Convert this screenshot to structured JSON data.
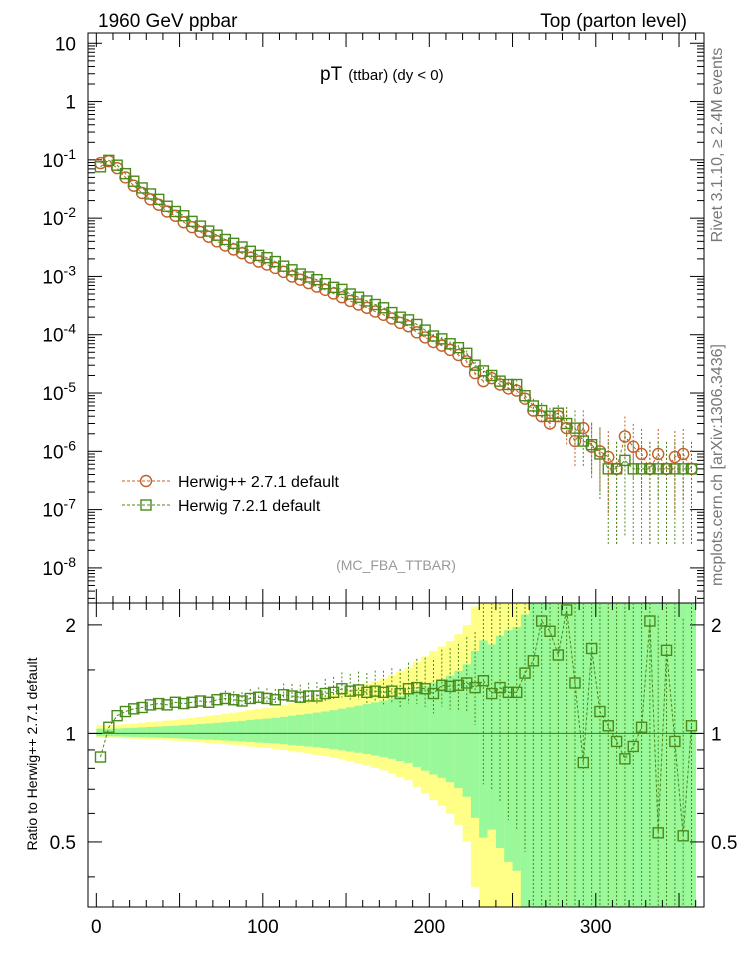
{
  "header": {
    "left": "1960 GeV ppbar",
    "right": "Top (parton level)"
  },
  "side_text": {
    "rivet": "Rivet 3.1.10, ≥ 2.4M events",
    "mcplots": "mcplots.cern.ch [arXiv:1306.3436]"
  },
  "plot_title": {
    "main": "pT",
    "sub": "(ttbar) (dy < 0)"
  },
  "analysis_label": "(MC_FBA_TTBAR)",
  "legend": [
    {
      "label": "Herwig++ 2.7.1 default",
      "color": "#c0602a",
      "marker": "circle"
    },
    {
      "label": "Herwig 7.2.1 default",
      "color": "#4a8a1a",
      "marker": "square"
    }
  ],
  "colors": {
    "herwigpp": "#c0602a",
    "herwig7": "#4a8a1a",
    "band_inner": "#99f899",
    "band_outer": "#ffff88"
  },
  "chart_data": [
    {
      "type": "line",
      "scale": "log",
      "xlim": [
        -5,
        365
      ],
      "ylim": [
        2.5e-09,
        15
      ],
      "ytick_labels": [
        "10",
        "1",
        "10^-1",
        "10^-2",
        "10^-3",
        "10^-4",
        "10^-5",
        "10^-6",
        "10^-7",
        "10^-8"
      ],
      "series": [
        {
          "name": "Herwig++ 2.7.1 default",
          "x": [
            2.5,
            7.5,
            12.5,
            17.5,
            22.5,
            27.5,
            32.5,
            37.5,
            42.5,
            47.5,
            52.5,
            57.5,
            62.5,
            67.5,
            72.5,
            77.5,
            82.5,
            87.5,
            92.5,
            97.5,
            102.5,
            107.5,
            112.5,
            117.5,
            122.5,
            127.5,
            132.5,
            137.5,
            142.5,
            147.5,
            152.5,
            157.5,
            162.5,
            167.5,
            172.5,
            177.5,
            182.5,
            187.5,
            192.5,
            197.5,
            202.5,
            207.5,
            212.5,
            217.5,
            222.5,
            227.5,
            232.5,
            237.5,
            242.5,
            247.5,
            252.5,
            257.5,
            262.5,
            267.5,
            272.5,
            277.5,
            282.5,
            287.5,
            292.5,
            297.5,
            302.5,
            307.5,
            312.5,
            317.5,
            322.5,
            327.5,
            332.5,
            337.5,
            342.5,
            347.5,
            352.5,
            357.5
          ],
          "y": [
            0.088,
            0.095,
            0.072,
            0.05,
            0.036,
            0.027,
            0.021,
            0.017,
            0.013,
            0.011,
            0.0085,
            0.007,
            0.0058,
            0.0048,
            0.004,
            0.0034,
            0.0029,
            0.0025,
            0.0021,
            0.0018,
            0.0016,
            0.0014,
            0.0012,
            0.001,
            0.00088,
            0.00077,
            0.00067,
            0.00059,
            0.00051,
            0.00044,
            0.00038,
            0.00033,
            0.00029,
            0.00025,
            0.00022,
            0.00019,
            0.00016,
            0.00014,
            0.00011,
            9e-05,
            7.5e-05,
            6.5e-05,
            5.5e-05,
            4.5e-05,
            3.5e-05,
            2.2e-05,
            1.6e-05,
            1.8e-05,
            1.4e-05,
            1.2e-05,
            1.1e-05,
            8e-06,
            5e-06,
            4e-06,
            3e-06,
            4e-06,
            2.5e-06,
            1.5e-06,
            2.5e-06,
            1.2e-06,
            1e-06,
            8e-07,
            5e-07,
            1.8e-06,
            1.2e-06,
            9e-07,
            5e-07,
            9e-07,
            5e-07,
            8e-07,
            9e-07,
            5e-07
          ]
        },
        {
          "name": "Herwig 7.2.1 default",
          "x": [
            2.5,
            7.5,
            12.5,
            17.5,
            22.5,
            27.5,
            32.5,
            37.5,
            42.5,
            47.5,
            52.5,
            57.5,
            62.5,
            67.5,
            72.5,
            77.5,
            82.5,
            87.5,
            92.5,
            97.5,
            102.5,
            107.5,
            112.5,
            117.5,
            122.5,
            127.5,
            132.5,
            137.5,
            142.5,
            147.5,
            152.5,
            157.5,
            162.5,
            167.5,
            172.5,
            177.5,
            182.5,
            187.5,
            192.5,
            197.5,
            202.5,
            207.5,
            212.5,
            217.5,
            222.5,
            227.5,
            232.5,
            237.5,
            242.5,
            247.5,
            252.5,
            257.5,
            262.5,
            267.5,
            272.5,
            277.5,
            282.5,
            287.5,
            292.5,
            297.5,
            302.5,
            307.5,
            312.5,
            317.5,
            322.5,
            327.5,
            332.5,
            337.5,
            342.5,
            347.5,
            352.5,
            357.5
          ],
          "y": [
            0.076,
            0.098,
            0.081,
            0.058,
            0.043,
            0.033,
            0.026,
            0.021,
            0.016,
            0.013,
            0.011,
            0.0088,
            0.0073,
            0.006,
            0.0051,
            0.0043,
            0.0037,
            0.0032,
            0.0027,
            0.0023,
            0.0021,
            0.0018,
            0.0015,
            0.0013,
            0.0011,
            0.00098,
            0.00088,
            0.00075,
            0.00065,
            0.0006,
            0.0005,
            0.00044,
            0.00038,
            0.00033,
            0.00029,
            0.00024,
            0.0002,
            0.00018,
            0.00015,
            0.00012,
            9.5e-05,
            8.5e-05,
            7e-05,
            6e-05,
            4.8e-05,
            3e-05,
            2.4e-05,
            2e-05,
            1.6e-05,
            1.4e-05,
            1.4e-05,
            9e-06,
            6e-06,
            5e-06,
            4e-06,
            4.5e-06,
            3e-06,
            2.5e-06,
            1.5e-06,
            1.3e-06,
            9e-07,
            5e-07,
            5e-07,
            7e-07,
            5e-07,
            5e-07,
            5e-07,
            5e-07,
            5e-07,
            5e-07,
            5e-07,
            5e-07
          ]
        }
      ]
    },
    {
      "type": "line",
      "ylabel": "Ratio to Herwig++ 2.7.1 default",
      "xlim": [
        -5,
        365
      ],
      "ylim": [
        0.33,
        2.3
      ],
      "yticks": [
        0.5,
        1,
        2
      ],
      "xticks": [
        0,
        100,
        200,
        300
      ],
      "series": [
        {
          "name": "Herwig 7.2.1 default",
          "x": [
            2.5,
            7.5,
            12.5,
            17.5,
            22.5,
            27.5,
            32.5,
            37.5,
            42.5,
            47.5,
            52.5,
            57.5,
            62.5,
            67.5,
            72.5,
            77.5,
            82.5,
            87.5,
            92.5,
            97.5,
            102.5,
            107.5,
            112.5,
            117.5,
            122.5,
            127.5,
            132.5,
            137.5,
            142.5,
            147.5,
            152.5,
            157.5,
            162.5,
            167.5,
            172.5,
            177.5,
            182.5,
            187.5,
            192.5,
            197.5,
            202.5,
            207.5,
            212.5,
            217.5,
            222.5,
            227.5,
            232.5,
            237.5,
            242.5,
            247.5,
            252.5,
            257.5,
            262.5,
            267.5,
            272.5,
            277.5,
            282.5,
            287.5,
            292.5,
            297.5,
            302.5,
            307.5,
            312.5,
            317.5,
            322.5,
            327.5,
            332.5,
            337.5,
            342.5,
            347.5,
            352.5,
            357.5
          ],
          "y": [
            0.86,
            1.04,
            1.12,
            1.15,
            1.17,
            1.18,
            1.2,
            1.21,
            1.2,
            1.22,
            1.21,
            1.22,
            1.23,
            1.22,
            1.24,
            1.25,
            1.24,
            1.23,
            1.25,
            1.26,
            1.25,
            1.24,
            1.28,
            1.27,
            1.26,
            1.27,
            1.27,
            1.29,
            1.3,
            1.33,
            1.31,
            1.32,
            1.3,
            1.31,
            1.3,
            1.31,
            1.29,
            1.33,
            1.34,
            1.33,
            1.29,
            1.36,
            1.35,
            1.36,
            1.38,
            1.34,
            1.4,
            1.29,
            1.34,
            1.3,
            1.3,
            1.47,
            1.59,
            2.05,
            1.92,
            1.65,
            2.2,
            1.38,
            0.83,
            1.72,
            1.15,
            1.05,
            0.95,
            0.85,
            0.92,
            1.04,
            2.05,
            0.53,
            1.7,
            0.95,
            0.52,
            1.05
          ]
        }
      ]
    }
  ]
}
